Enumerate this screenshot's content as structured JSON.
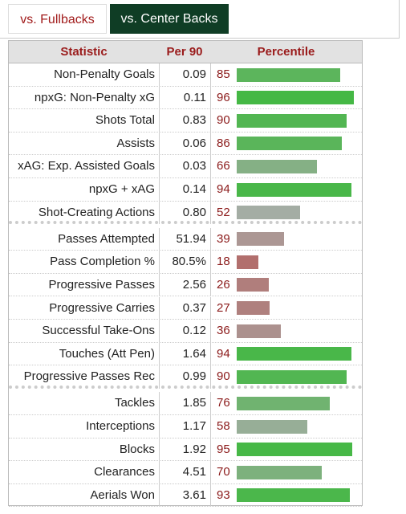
{
  "tabs": [
    "vs. Fullbacks",
    "vs. Center Backs"
  ],
  "table": {
    "columns": [
      "Statistic",
      "Per 90",
      "Percentile"
    ],
    "groups": [
      [
        {
          "statistic": "Non-Penalty Goals",
          "per90": "0.09",
          "percentile": 85
        },
        {
          "statistic": "npxG: Non-Penalty xG",
          "per90": "0.11",
          "percentile": 96
        },
        {
          "statistic": "Shots Total",
          "per90": "0.83",
          "percentile": 90
        },
        {
          "statistic": "Assists",
          "per90": "0.06",
          "percentile": 86
        },
        {
          "statistic": "xAG: Exp. Assisted Goals",
          "per90": "0.03",
          "percentile": 66
        },
        {
          "statistic": "npxG + xAG",
          "per90": "0.14",
          "percentile": 94
        },
        {
          "statistic": "Shot-Creating Actions",
          "per90": "0.80",
          "percentile": 52
        }
      ],
      [
        {
          "statistic": "Passes Attempted",
          "per90": "51.94",
          "percentile": 39
        },
        {
          "statistic": "Pass Completion %",
          "per90": "80.5%",
          "percentile": 18
        },
        {
          "statistic": "Progressive Passes",
          "per90": "2.56",
          "percentile": 26
        },
        {
          "statistic": "Progressive Carries",
          "per90": "0.37",
          "percentile": 27
        },
        {
          "statistic": "Successful Take-Ons",
          "per90": "0.12",
          "percentile": 36
        },
        {
          "statistic": "Touches (Att Pen)",
          "per90": "1.64",
          "percentile": 94
        },
        {
          "statistic": "Progressive Passes Rec",
          "per90": "0.99",
          "percentile": 90
        }
      ],
      [
        {
          "statistic": "Tackles",
          "per90": "1.85",
          "percentile": 76
        },
        {
          "statistic": "Interceptions",
          "per90": "1.17",
          "percentile": 58
        },
        {
          "statistic": "Blocks",
          "per90": "1.92",
          "percentile": 95
        },
        {
          "statistic": "Clearances",
          "per90": "4.51",
          "percentile": 70
        },
        {
          "statistic": "Aerials Won",
          "per90": "3.61",
          "percentile": 93
        }
      ]
    ]
  }
}
